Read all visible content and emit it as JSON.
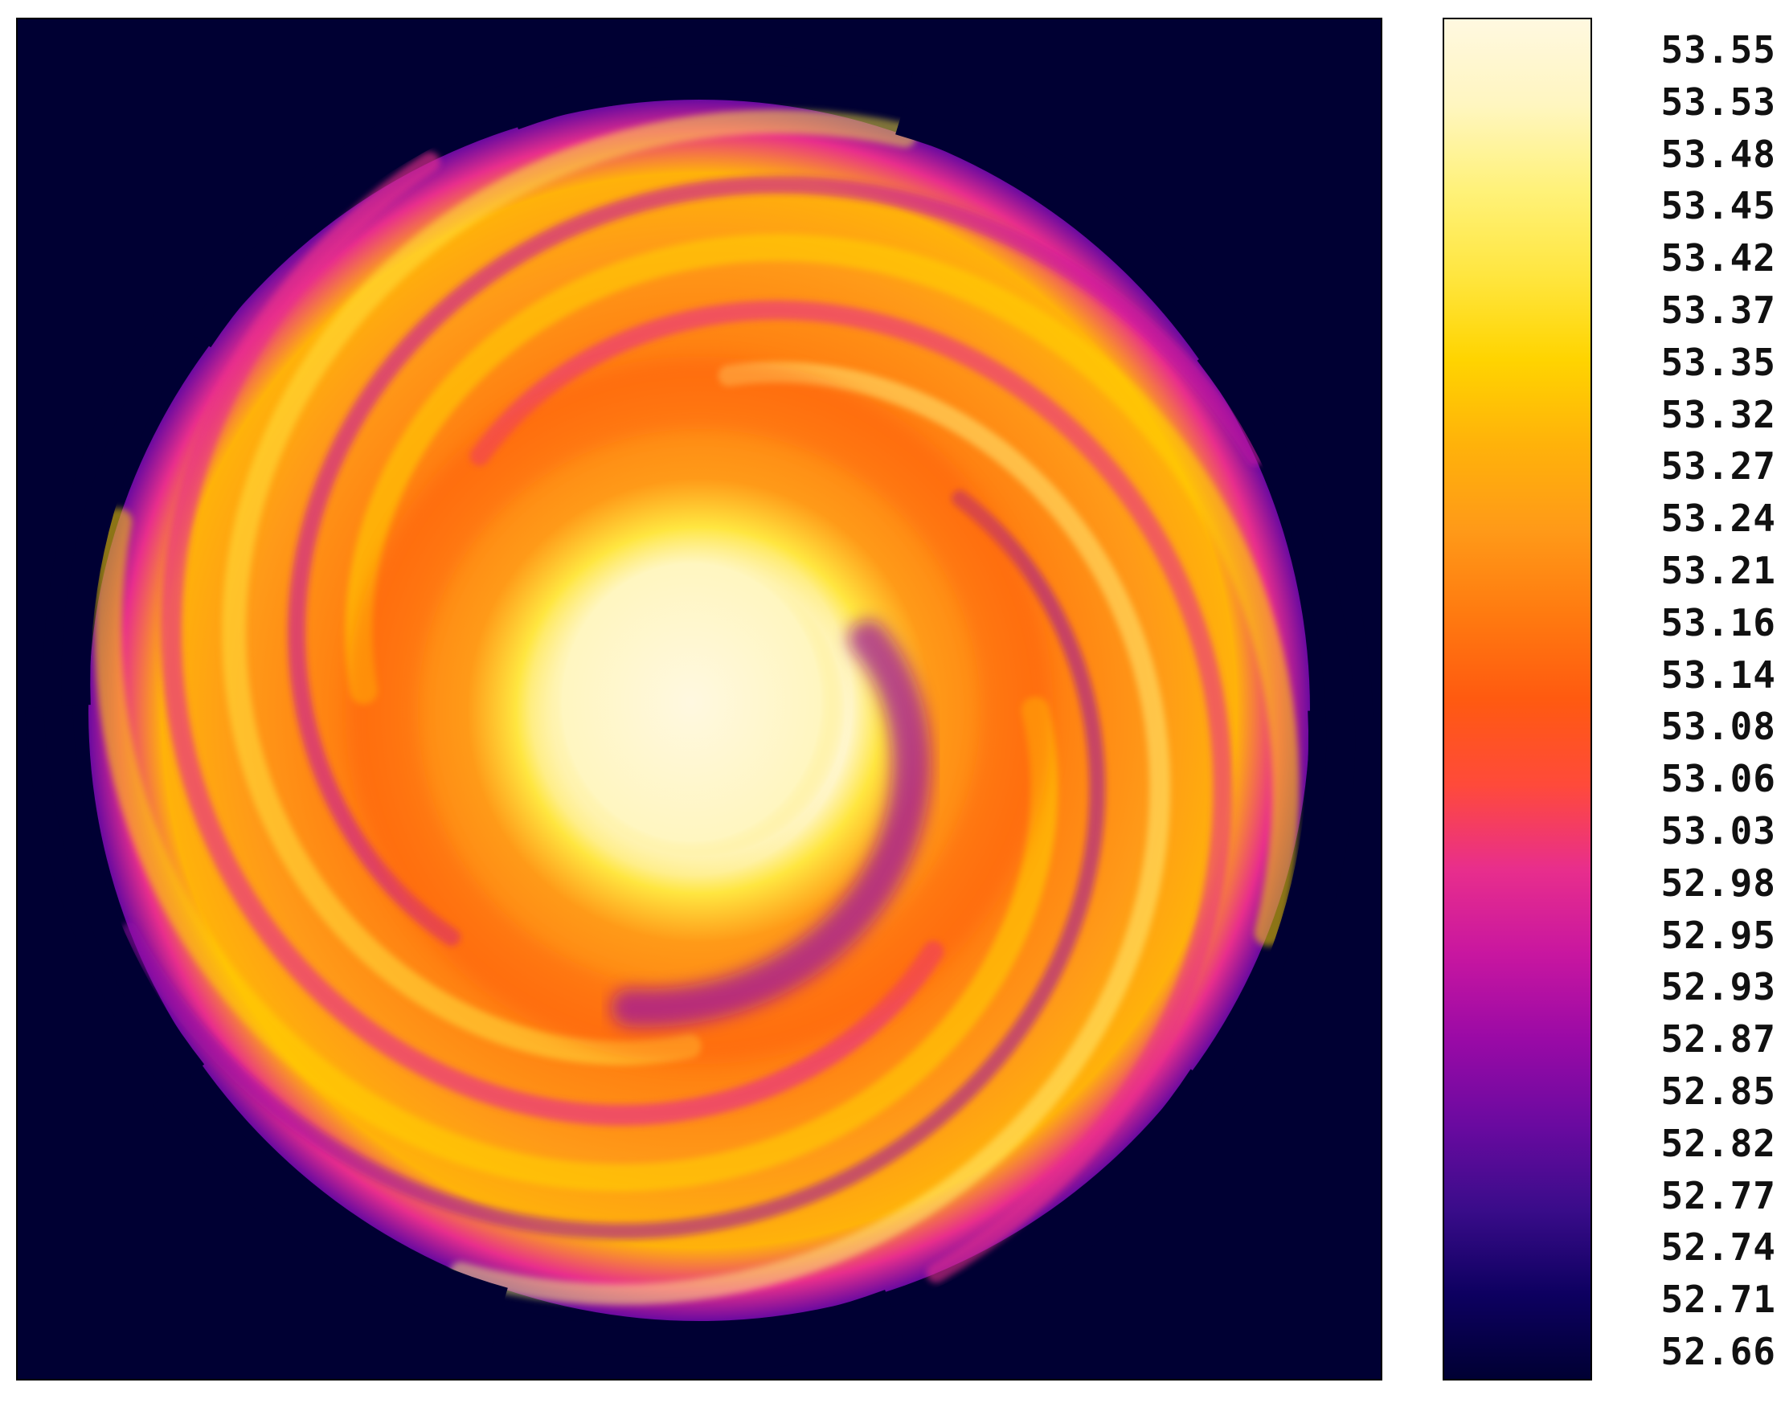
{
  "chart_data": {
    "type": "heatmap",
    "title": "",
    "xlabel": "",
    "ylabel": "",
    "colorbar": {
      "min": 52.66,
      "max": 53.55,
      "tick_labels": [
        "53.55",
        "53.53",
        "53.48",
        "53.45",
        "53.42",
        "53.37",
        "53.35",
        "53.32",
        "53.27",
        "53.24",
        "53.21",
        "53.16",
        "53.14",
        "53.08",
        "53.06",
        "53.03",
        "52.98",
        "52.95",
        "52.93",
        "52.87",
        "52.85",
        "52.82",
        "52.77",
        "52.74",
        "52.71",
        "52.66"
      ],
      "colormap": [
        "#000033",
        "#0d0060",
        "#3a0c8a",
        "#6a0aa0",
        "#9a0aa6",
        "#c816a0",
        "#e82e8c",
        "#ff4a3a",
        "#ff5a10",
        "#ff7a10",
        "#ff9a18",
        "#ffb20a",
        "#ffd400",
        "#ffe640",
        "#fff27a",
        "#fff6c0",
        "#fff8e0"
      ]
    },
    "background_color": "#000033",
    "description_of_field": "spiral disk: saturated core, orange ring, spiral arms fading to purple at edges"
  }
}
